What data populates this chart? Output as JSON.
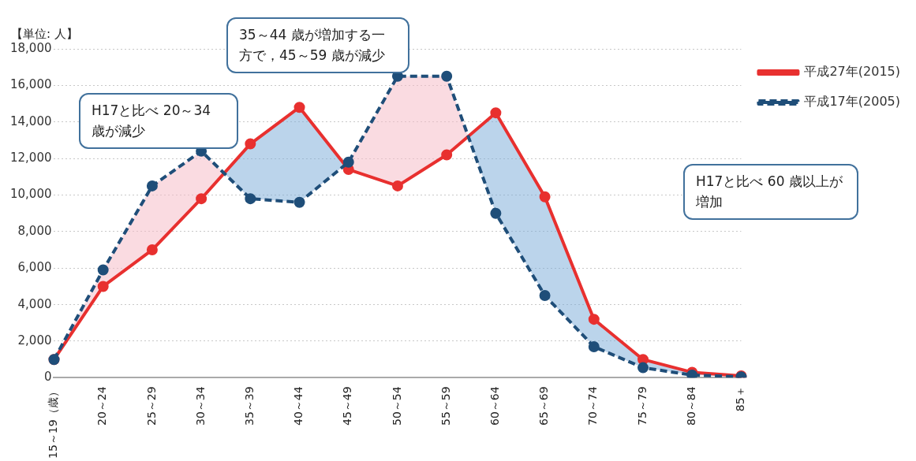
{
  "chart_data": {
    "type": "line",
    "ylabel": "【単位: 人】",
    "categories": [
      "15～19（歳）",
      "20～24",
      "25～29",
      "30～34",
      "35～39",
      "40～44",
      "45～49",
      "50～54",
      "55～59",
      "60～64",
      "65～69",
      "70～74",
      "75～79",
      "80～84",
      "85＋"
    ],
    "series": [
      {
        "name": "平成27年(2015)",
        "color": "#e8302f",
        "line_style": "solid",
        "values": [
          1000,
          5000,
          7000,
          9800,
          12800,
          14800,
          11400,
          10500,
          12200,
          14500,
          9900,
          3200,
          1000,
          300,
          100
        ]
      },
      {
        "name": "平成17年(2005)",
        "color": "#1f4e79",
        "line_style": "dashed",
        "values": [
          1000,
          5900,
          10500,
          12400,
          9800,
          9600,
          11800,
          16500,
          16500,
          9000,
          4500,
          1700,
          550,
          150,
          50
        ]
      }
    ],
    "ylim": [
      0,
      18000
    ],
    "yticks": [
      0,
      {
        "value": 2000,
        "label": "2,000"
      },
      {
        "value": 4000,
        "label": "4,000"
      },
      {
        "value": 6000,
        "label": "6,000"
      },
      {
        "value": 8000,
        "label": "8,000"
      },
      {
        "value": 10000,
        "label": "10,000"
      },
      {
        "value": 12000,
        "label": "12,000"
      },
      {
        "value": 14000,
        "label": "14,000"
      },
      {
        "value": 16000,
        "label": "16,000"
      },
      {
        "value": 18000,
        "label": "18,000"
      }
    ],
    "grid": "y",
    "legend": "top right",
    "marker": "circle",
    "annotations": [
      "H17と比べ 20～34 歳が減少",
      "35～44 歳が増加する一方で，45～59 歳が減少",
      "H17と比べ 60 歳以上が増加"
    ]
  }
}
